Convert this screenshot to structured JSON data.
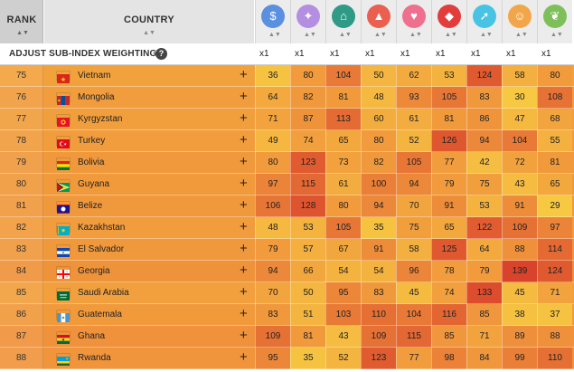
{
  "header": {
    "rank_label": "RANK",
    "country_label": "COUNTRY",
    "sort_glyph": "▲▼",
    "indices": [
      {
        "icon": "money-bag-icon",
        "glyph": "$",
        "color": "#5b8fe0"
      },
      {
        "icon": "lightbulb-icon",
        "glyph": "✦",
        "color": "#b48ee0"
      },
      {
        "icon": "institution-icon",
        "glyph": "⌂",
        "color": "#2f9a86"
      },
      {
        "icon": "graduation-cap-icon",
        "glyph": "▲",
        "color": "#ea5f4f"
      },
      {
        "icon": "health-heart-icon",
        "glyph": "♥",
        "color": "#ef6f8f"
      },
      {
        "icon": "shield-icon",
        "glyph": "◆",
        "color": "#e23c3c"
      },
      {
        "icon": "running-person-icon",
        "glyph": "➚",
        "color": "#48c3e3"
      },
      {
        "icon": "people-group-icon",
        "glyph": "☺",
        "color": "#f3a54a"
      },
      {
        "icon": "leaf-icon",
        "glyph": "❦",
        "color": "#7fbf5a"
      }
    ]
  },
  "weighting": {
    "title": "ADJUST SUB-INDEX WEIGHTING",
    "help": "?",
    "values": [
      "x1",
      "x1",
      "x1",
      "x1",
      "x1",
      "x1",
      "x1",
      "x1",
      "x1"
    ]
  },
  "plus_glyph": "+",
  "rows": [
    {
      "rank": "75",
      "country": "Vietnam",
      "flag": "vietnam",
      "values": [
        36,
        80,
        104,
        50,
        62,
        53,
        124,
        58,
        80
      ]
    },
    {
      "rank": "76",
      "country": "Mongolia",
      "flag": "mongolia",
      "values": [
        64,
        82,
        81,
        48,
        93,
        105,
        83,
        30,
        108
      ]
    },
    {
      "rank": "77",
      "country": "Kyrgyzstan",
      "flag": "kyrgyzstan",
      "values": [
        71,
        87,
        113,
        60,
        61,
        81,
        86,
        47,
        68
      ]
    },
    {
      "rank": "78",
      "country": "Turkey",
      "flag": "turkey",
      "values": [
        49,
        74,
        65,
        80,
        52,
        126,
        94,
        104,
        55
      ]
    },
    {
      "rank": "79",
      "country": "Bolivia",
      "flag": "bolivia",
      "values": [
        80,
        123,
        73,
        82,
        105,
        77,
        42,
        72,
        81
      ]
    },
    {
      "rank": "80",
      "country": "Guyana",
      "flag": "guyana",
      "values": [
        97,
        115,
        61,
        100,
        94,
        79,
        75,
        43,
        65
      ]
    },
    {
      "rank": "81",
      "country": "Belize",
      "flag": "belize",
      "values": [
        106,
        128,
        80,
        94,
        70,
        91,
        53,
        91,
        29
      ]
    },
    {
      "rank": "82",
      "country": "Kazakhstan",
      "flag": "kazakhstan",
      "values": [
        48,
        53,
        105,
        35,
        75,
        65,
        122,
        109,
        97
      ]
    },
    {
      "rank": "83",
      "country": "El Salvador",
      "flag": "el-salvador",
      "values": [
        79,
        57,
        67,
        91,
        58,
        125,
        64,
        88,
        114
      ]
    },
    {
      "rank": "84",
      "country": "Georgia",
      "flag": "georgia",
      "values": [
        94,
        66,
        54,
        54,
        96,
        78,
        79,
        139,
        124
      ]
    },
    {
      "rank": "85",
      "country": "Saudi Arabia",
      "flag": "saudi-arabia",
      "values": [
        70,
        50,
        95,
        83,
        45,
        74,
        133,
        45,
        71
      ]
    },
    {
      "rank": "86",
      "country": "Guatemala",
      "flag": "guatemala",
      "values": [
        83,
        51,
        103,
        110,
        104,
        116,
        85,
        38,
        37
      ]
    },
    {
      "rank": "87",
      "country": "Ghana",
      "flag": "ghana",
      "values": [
        109,
        81,
        43,
        109,
        115,
        85,
        71,
        89,
        88
      ]
    },
    {
      "rank": "88",
      "country": "Rwanda",
      "flag": "rwanda",
      "values": [
        95,
        35,
        52,
        123,
        77,
        98,
        84,
        99,
        110
      ]
    }
  ],
  "colors": {
    "low": "#f7c842",
    "high": "#d9412b"
  }
}
